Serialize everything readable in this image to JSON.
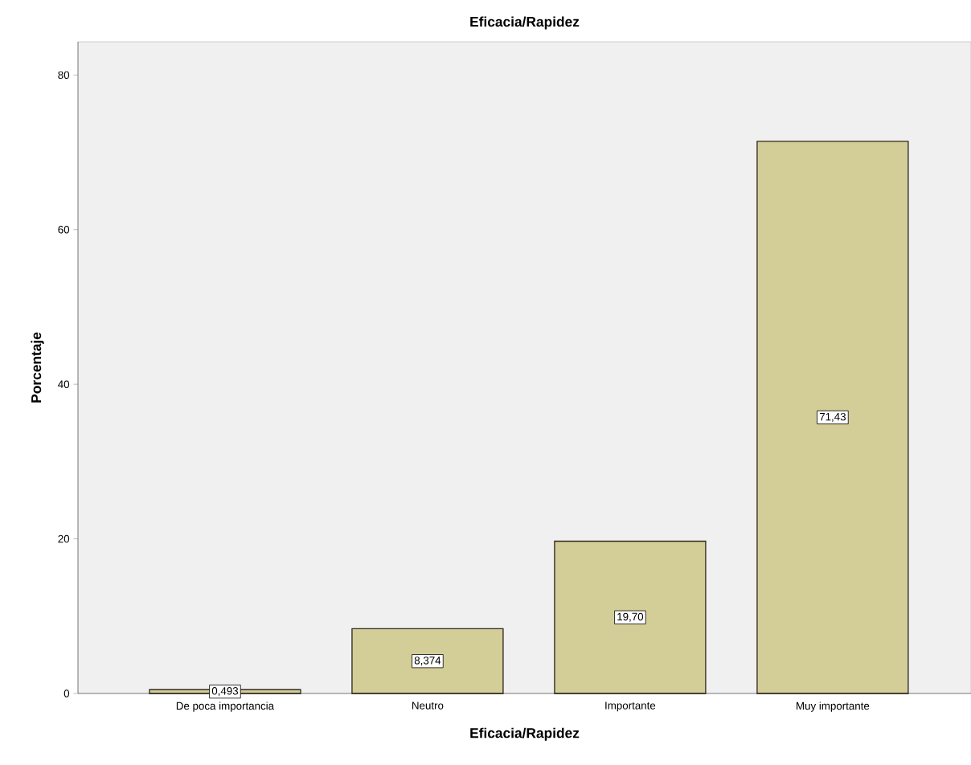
{
  "chart_data": {
    "type": "bar",
    "title": "Eficacia/Rapidez",
    "xlabel": "Eficacia/Rapidez",
    "ylabel": "Porcentaje",
    "categories": [
      "De poca importancia",
      "Neutro",
      "Importante",
      "Muy importante"
    ],
    "values": [
      0.493,
      8.374,
      19.7,
      71.43
    ],
    "value_labels": [
      "0,493",
      "8,374",
      "19,70",
      "71,43"
    ],
    "color": "#d3ce97",
    "ylim": [
      0,
      84.3
    ],
    "yticks": [
      0,
      20,
      40,
      60,
      80
    ],
    "grid": false
  }
}
